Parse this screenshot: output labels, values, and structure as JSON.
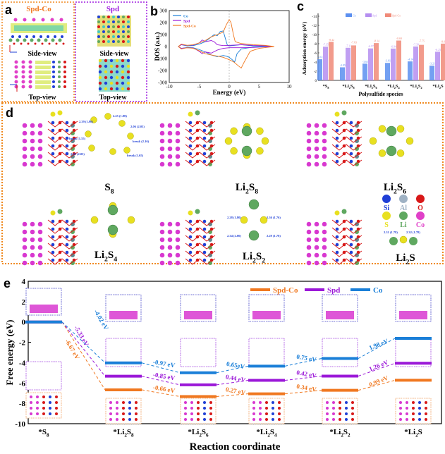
{
  "panels": {
    "a": "a",
    "b": "b",
    "c": "c",
    "d": "d",
    "e": "e"
  },
  "panel_a": {
    "left_title": "Spd-Co",
    "right_title": "Spd",
    "side_view": "Side-view",
    "top_view": "Top-view"
  },
  "panel_d": {
    "species": [
      "S8",
      "Li2S8",
      "Li2S6",
      "Li2S4",
      "Li2S2",
      "Li2S"
    ],
    "species_display": [
      [
        "S",
        "8",
        ""
      ],
      [
        "Li",
        "2",
        "S",
        "8"
      ],
      [
        "Li",
        "2",
        "S",
        "6"
      ],
      [
        "Li",
        "2",
        "S",
        "4"
      ],
      [
        "Li",
        "2",
        "S",
        "2"
      ],
      [
        "Li",
        "2",
        "S",
        ""
      ]
    ],
    "bond_labels": {
      "S8": [
        "2.39 (1.90)",
        "2.25 (1.98)",
        "2.06 (2.03)",
        "break (1.55)",
        "break (2.16)",
        "2.09 (2.05)",
        "break (1.65)"
      ],
      "Li2S2": [
        "2.28 (1.80)",
        "2.36 (1.76)",
        "2.34 (2.00)",
        "2.29 (1.78)"
      ],
      "Li2S": [
        "2.31 (1.78)",
        "2.32 (1.78)"
      ]
    },
    "legend": [
      {
        "symbol": "Si",
        "color": "#1f3fd6"
      },
      {
        "symbol": "Al",
        "color": "#9fb2c4"
      },
      {
        "symbol": "O",
        "color": "#d81818"
      },
      {
        "symbol": "S",
        "color": "#e8e020"
      },
      {
        "symbol": "Li",
        "color": "#5fa860"
      },
      {
        "symbol": "Co",
        "color": "#e040c8"
      }
    ]
  },
  "colors": {
    "co": "#1a7fd8",
    "spd": "#9b18d8",
    "spdco": "#f07820",
    "frame_orange": "#f08a20",
    "frame_purple": "#a020e0"
  },
  "chart_data": [
    {
      "id": "b",
      "type": "line",
      "xlabel": "Energy (eV)",
      "ylabel": "DOS (a.u.)",
      "xlim": [
        -10,
        10
      ],
      "ylim": [
        -300,
        300
      ],
      "xticks": [
        -10,
        -5,
        0,
        5,
        10
      ],
      "yticks": [
        300,
        200,
        100,
        0,
        -100,
        -200,
        -300
      ],
      "legend_position": "top-left",
      "series": [
        {
          "name": "Co",
          "color": "#1a7fd8",
          "up": [
            [
              -8.5,
              0
            ],
            [
              -8,
              15
            ],
            [
              -7,
              5
            ],
            [
              -6,
              8
            ],
            [
              -5,
              20
            ],
            [
              -4,
              40
            ],
            [
              -3,
              80
            ],
            [
              -2.5,
              100
            ],
            [
              -2,
              90
            ],
            [
              -1.5,
              125
            ],
            [
              -1,
              130
            ],
            [
              -0.6,
              60
            ],
            [
              -0.3,
              10
            ],
            [
              0,
              5
            ],
            [
              2,
              15
            ],
            [
              4,
              5
            ],
            [
              6,
              2
            ],
            [
              7,
              0
            ]
          ],
          "down": [
            [
              -8.5,
              0
            ],
            [
              -8,
              -15
            ],
            [
              -7,
              -8
            ],
            [
              -6,
              -10
            ],
            [
              -5,
              -25
            ],
            [
              -4,
              -45
            ],
            [
              -3,
              -70
            ],
            [
              -2,
              -85
            ],
            [
              -1.5,
              -80
            ],
            [
              -1,
              -75
            ],
            [
              -0.5,
              -80
            ],
            [
              0,
              -90
            ],
            [
              0.5,
              -110
            ],
            [
              0.9,
              -130
            ],
            [
              1.3,
              -60
            ],
            [
              2,
              -20
            ],
            [
              4,
              -5
            ],
            [
              7,
              0
            ]
          ]
        },
        {
          "name": "Spd",
          "color": "#9b18d8",
          "up": [
            [
              -8.5,
              0
            ],
            [
              -8,
              15
            ],
            [
              -7,
              10
            ],
            [
              -6,
              12
            ],
            [
              -5,
              30
            ],
            [
              -4.5,
              55
            ],
            [
              -4,
              40
            ],
            [
              -3,
              50
            ],
            [
              -2.5,
              40
            ],
            [
              -2,
              15
            ],
            [
              -1,
              8
            ],
            [
              0,
              10
            ],
            [
              2,
              15
            ],
            [
              4,
              10
            ],
            [
              6,
              8
            ],
            [
              7,
              0
            ]
          ],
          "down": [
            [
              -8.5,
              0
            ],
            [
              -8,
              -15
            ],
            [
              -7,
              -10
            ],
            [
              -6,
              -12
            ],
            [
              -5,
              -40
            ],
            [
              -4.5,
              -60
            ],
            [
              -4,
              -45
            ],
            [
              -3,
              -55
            ],
            [
              -2,
              -30
            ],
            [
              -1,
              -15
            ],
            [
              0,
              -10
            ],
            [
              2,
              -10
            ],
            [
              4,
              -8
            ],
            [
              7,
              0
            ]
          ]
        },
        {
          "name": "Spd-Co",
          "color": "#f07820",
          "up": [
            [
              -8.5,
              0
            ],
            [
              -8,
              20
            ],
            [
              -7,
              10
            ],
            [
              -6,
              15
            ],
            [
              -5,
              30
            ],
            [
              -4,
              50
            ],
            [
              -3,
              80
            ],
            [
              -2,
              100
            ],
            [
              -1,
              120
            ],
            [
              -0.5,
              180
            ],
            [
              0,
              225
            ],
            [
              0.3,
              200
            ],
            [
              0.7,
              100
            ],
            [
              1,
              40
            ],
            [
              2,
              25
            ],
            [
              4,
              15
            ],
            [
              6,
              10
            ],
            [
              7.5,
              0
            ]
          ],
          "down": [
            [
              -8.5,
              0
            ],
            [
              -8,
              -20
            ],
            [
              -7,
              -10
            ],
            [
              -6,
              -15
            ],
            [
              -5,
              -35
            ],
            [
              -4,
              -60
            ],
            [
              -3,
              -70
            ],
            [
              -2,
              -80
            ],
            [
              -1,
              -90
            ],
            [
              0,
              -110
            ],
            [
              0.8,
              -130
            ],
            [
              1.5,
              -160
            ],
            [
              2,
              -180
            ],
            [
              2.5,
              -130
            ],
            [
              3.5,
              -40
            ],
            [
              5,
              -15
            ],
            [
              7.5,
              0
            ]
          ]
        }
      ]
    },
    {
      "id": "c",
      "type": "bar",
      "xlabel": "Polysulfide species",
      "ylabel": "Adsorption energy (eV)",
      "ylim": [
        0,
        -14
      ],
      "yticks": [
        0,
        -2,
        -4,
        -6,
        -8,
        -10,
        -12,
        -14
      ],
      "categories": [
        [
          "*S",
          "8"
        ],
        [
          "*Li",
          "2",
          "S",
          "8"
        ],
        [
          "*Li",
          "2",
          "S",
          "6"
        ],
        [
          "*Li",
          "2",
          "S",
          "4"
        ],
        [
          "*Li",
          "2",
          "S",
          "2"
        ],
        [
          "*Li",
          "2",
          "S",
          ""
        ]
      ],
      "legend_position": "top-center",
      "series": [
        {
          "name": "Co",
          "color": "#5b8ff0",
          "values": [
            -4.61,
            -2.85,
            -3.65,
            -3.81,
            -4.14,
            -3.21
          ]
        },
        {
          "name": "Spd",
          "color": "#b58ef0",
          "values": [
            -7.35,
            -7.11,
            -6.97,
            -6.94,
            -7.39,
            -6.25
          ]
        },
        {
          "name": "Spd-Co",
          "color": "#f08a78",
          "values": [
            -8.42,
            -7.63,
            -8.14,
            -8.69,
            -7.75,
            -8.02
          ]
        }
      ]
    },
    {
      "id": "e",
      "type": "line",
      "xlabel": "Reaction coordinate",
      "ylabel": "Free energy (eV)",
      "ylim": [
        -10,
        4
      ],
      "yticks": [
        4,
        2,
        0,
        -2,
        -4,
        -6,
        -8,
        -10
      ],
      "categories": [
        [
          "*S",
          "8",
          ""
        ],
        [
          "*Li",
          "2",
          "S",
          "8"
        ],
        [
          "*Li",
          "2",
          "S",
          "6"
        ],
        [
          "*Li",
          "2",
          "S",
          "4"
        ],
        [
          "*Li",
          "2",
          "S",
          "2"
        ],
        [
          "*Li",
          "2",
          "S",
          ""
        ]
      ],
      "legend_position": "top-right",
      "series": [
        {
          "name": "Spd-Co",
          "color": "#f07820",
          "values": [
            0,
            -6.67,
            -7.33,
            -7.06,
            -6.72,
            -5.73
          ],
          "steps": [
            "-6.67 eV",
            "-0.66 eV",
            "0.27 eV",
            "0.34 eV",
            "0.99 eV"
          ]
        },
        {
          "name": "Spd",
          "color": "#9b18d8",
          "values": [
            0,
            -5.33,
            -6.18,
            -5.74,
            -5.32,
            -4.06
          ],
          "steps": [
            "-5.33 eV",
            "-0.85 eV",
            "0.44 eV",
            "0.42 eV",
            "1.26 eV"
          ]
        },
        {
          "name": "Co",
          "color": "#1a7fd8",
          "values": [
            0,
            -4.02,
            -4.99,
            -4.34,
            -3.59,
            -1.61
          ],
          "steps": [
            "-4.02 eV",
            "-0.97 eV",
            "0.65eV",
            "0.75 eV",
            "1.98 eV"
          ]
        }
      ]
    }
  ]
}
